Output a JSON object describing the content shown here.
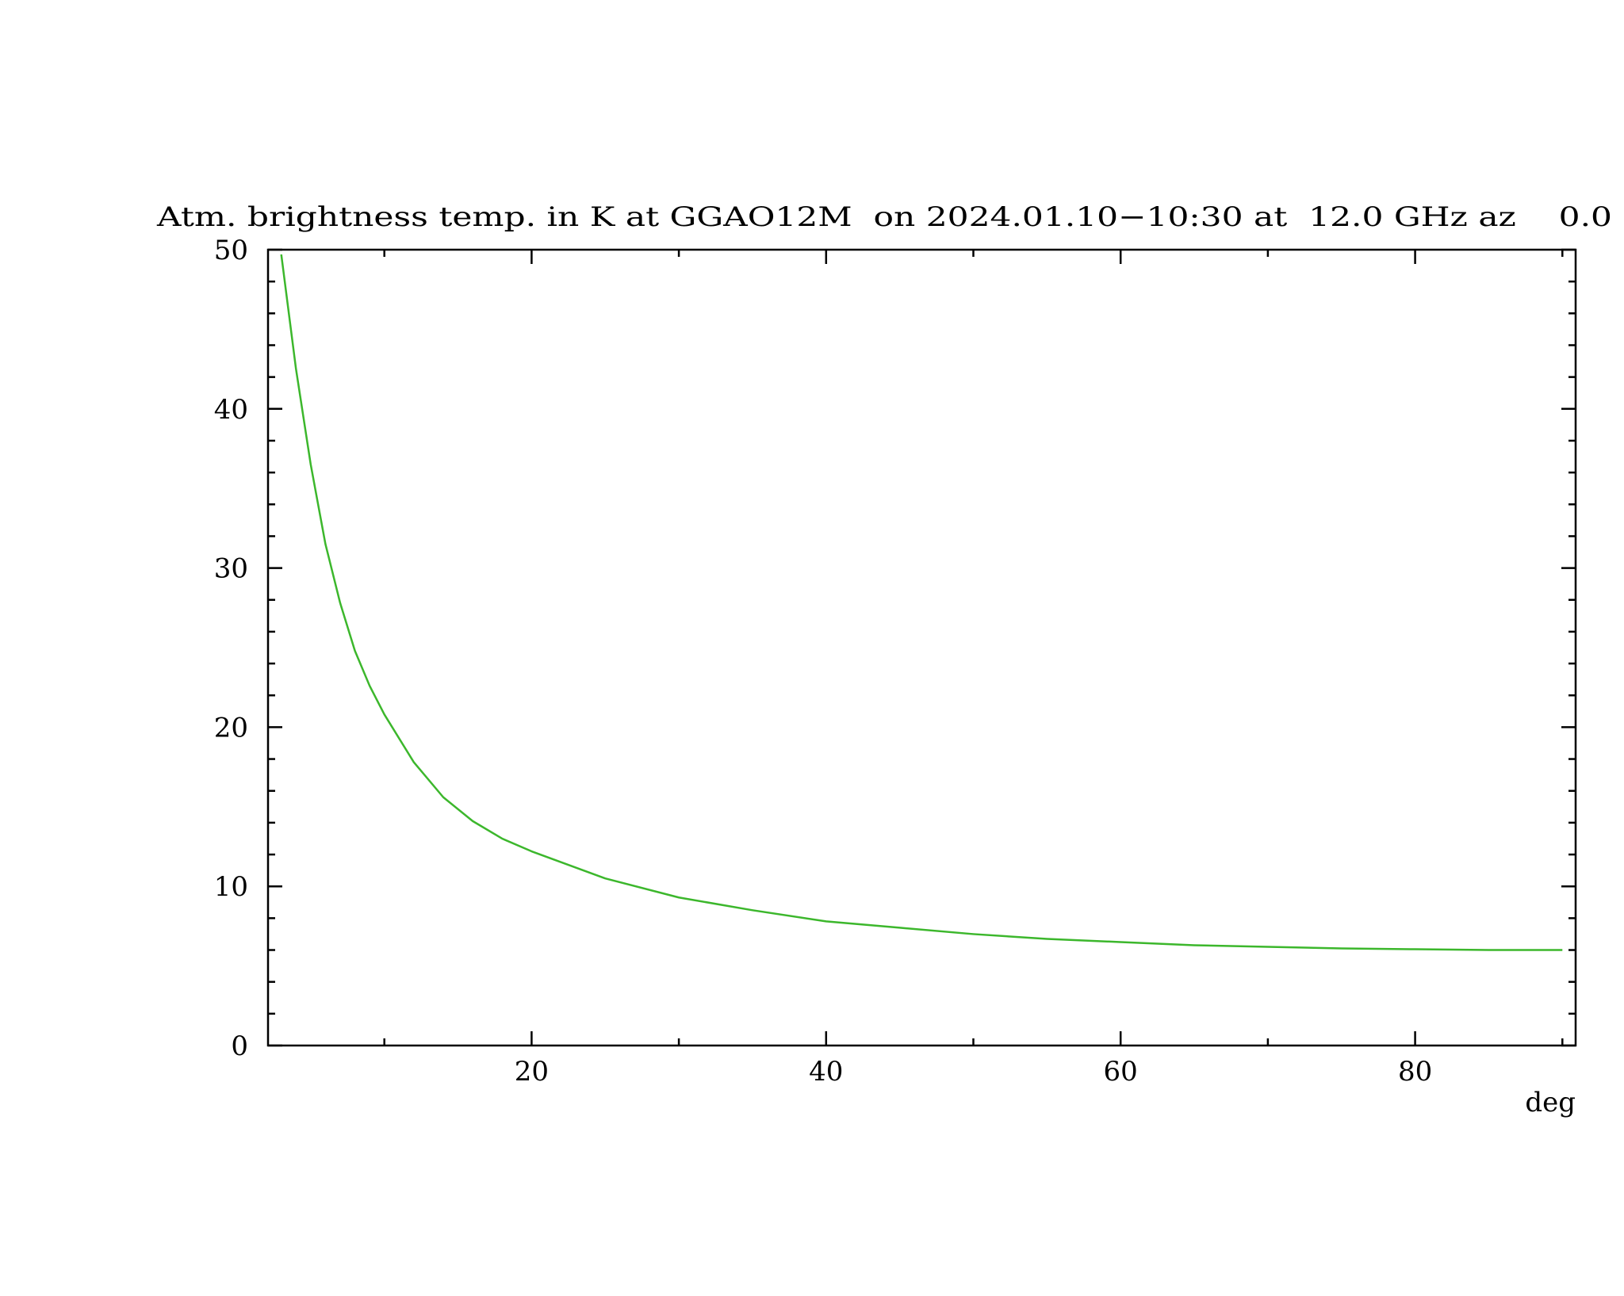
{
  "chart_data": {
    "type": "line",
    "title": "Atm. brightness temp. in K at GGAO12M  on 2024.01.10−10:30 at  12.0 GHz az    0.0",
    "xlabel": "deg",
    "x": [
      3,
      4,
      5,
      6,
      7,
      8,
      9,
      10,
      12,
      14,
      16,
      18,
      20,
      25,
      30,
      35,
      40,
      45,
      50,
      55,
      60,
      65,
      70,
      75,
      80,
      85,
      90
    ],
    "series": [
      {
        "color": "#3cb72c",
        "values": [
          49.7,
          42.5,
          36.5,
          31.5,
          27.8,
          24.8,
          22.6,
          20.8,
          17.8,
          15.6,
          14.1,
          13.0,
          12.2,
          10.5,
          9.3,
          8.5,
          7.8,
          7.4,
          7.0,
          6.7,
          6.5,
          6.3,
          6.2,
          6.1,
          6.05,
          6.0,
          6.0
        ]
      }
    ],
    "xlim": [
      2.1,
      90.9
    ],
    "xticks": [
      20,
      40,
      60,
      80
    ],
    "xminorticks": [
      10,
      30,
      50,
      70,
      90
    ],
    "ylim": [
      0,
      50
    ],
    "yticks": [
      0,
      10,
      20,
      30,
      40,
      50
    ],
    "yminorticks": [
      2,
      4,
      6,
      8,
      12,
      14,
      16,
      18,
      22,
      24,
      26,
      28,
      32,
      34,
      36,
      38,
      42,
      44,
      46,
      48
    ]
  }
}
